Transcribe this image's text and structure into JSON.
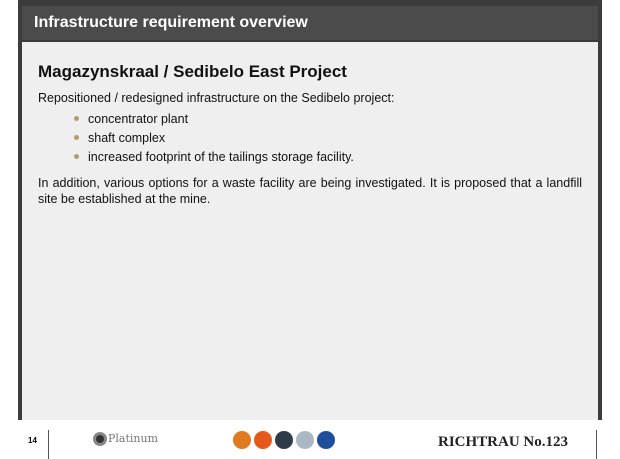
{
  "header": {
    "title": "Infrastructure requirement overview"
  },
  "content": {
    "heading": "Magazynskraal / Sedibelo East Project",
    "intro": "Repositioned / redesigned infrastructure on the Sedibelo project:",
    "bullets": [
      "concentrator plant",
      "shaft complex",
      "increased footprint of the tailings storage facility."
    ],
    "paragraph": "In addition, various options for a waste facility are being investigated. It is proposed that a landfill site be established at the mine."
  },
  "footer": {
    "page": "14",
    "logo": "Platinum",
    "reference": "RICHTRAU No.123"
  }
}
